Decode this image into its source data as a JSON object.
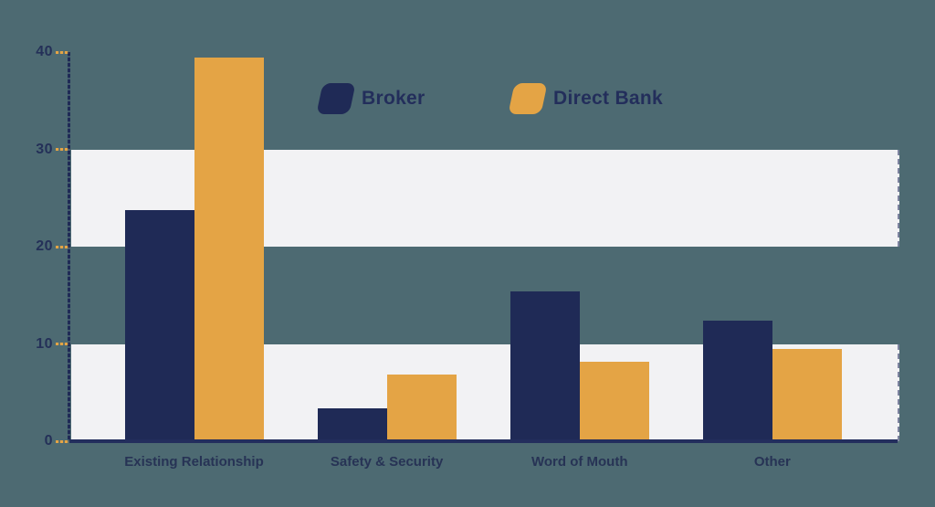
{
  "colors": {
    "background": "#4D6A72",
    "band": "#F2F2F4",
    "navy": "#1F2A56",
    "orange": "#E4A445",
    "axis": "#232E5D",
    "tick_dash": "#E4A445",
    "label_text": "#273355"
  },
  "legend": {
    "items": [
      {
        "label": "Broker",
        "color": "#1F2A56",
        "swatch": "skewed-rounded-square"
      },
      {
        "label": "Direct Bank",
        "color": "#E4A445",
        "swatch": "skewed-rounded-square"
      }
    ]
  },
  "chart_data": {
    "type": "bar",
    "title": "",
    "xlabel": "",
    "ylabel": "",
    "categories": [
      "Existing Relationship",
      "Safety & Security",
      "Word of Mouth",
      "Other"
    ],
    "series": [
      {
        "name": "Broker",
        "color": "#1F2A56",
        "values": [
          23.8,
          3.4,
          15.4,
          12.4
        ]
      },
      {
        "name": "Direct Bank",
        "color": "#E4A445",
        "values": [
          39.4,
          6.9,
          8.2,
          9.5
        ]
      }
    ],
    "ylim": [
      0,
      40
    ],
    "yticks": [
      0,
      10,
      20,
      30,
      40
    ],
    "ytick_labels": [
      "0",
      "10",
      "20",
      "30",
      "40"
    ],
    "grid_bands": [
      [
        0,
        10
      ],
      [
        20,
        30
      ]
    ],
    "grid": "alternating horizontal bands",
    "legend_position": "top-center"
  }
}
